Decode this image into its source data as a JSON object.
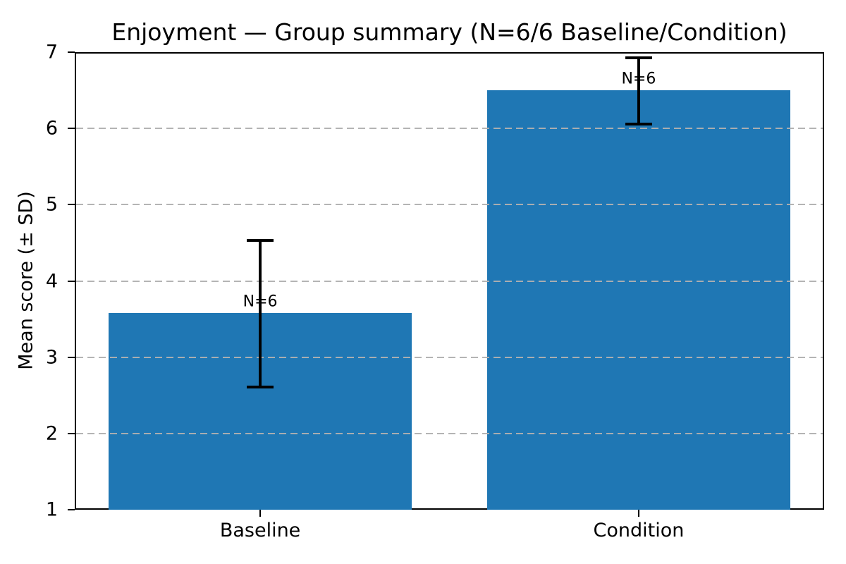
{
  "figure": {
    "background": "#ffffff"
  },
  "chart_data": {
    "type": "bar",
    "title": "Enjoyment — Group summary (N=6/6 Baseline/Condition)",
    "ylabel": "Mean score (± SD)",
    "xlabel": "",
    "categories": [
      "Baseline",
      "Condition"
    ],
    "series": [
      {
        "name": "Mean score",
        "values": [
          3.58,
          6.5
        ],
        "sd": [
          0.97,
          0.44
        ],
        "error_low": [
          2.61,
          6.06
        ],
        "error_high": [
          4.55,
          6.94
        ]
      }
    ],
    "point_labels": [
      "N=6",
      "N=6"
    ],
    "ylim": [
      1,
      7
    ],
    "yticks": [
      1,
      2,
      3,
      4,
      5,
      6,
      7
    ],
    "xlim": [
      -0.49,
      1.49
    ],
    "x_positions": [
      0,
      1
    ],
    "bar_width": 0.8,
    "grid": {
      "axis": "y",
      "style": "dashed",
      "on": true
    },
    "legend": "none",
    "colors": {
      "bar": "#1f77b4",
      "grid": "#b0b0b0",
      "error": "#000000",
      "text": "#000000"
    },
    "n_label_offset": 0.17
  }
}
